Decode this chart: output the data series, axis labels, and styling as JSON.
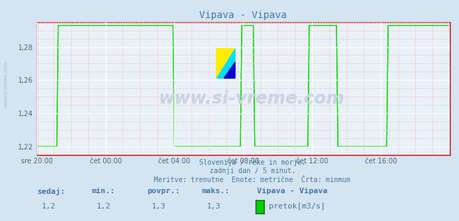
{
  "title": "Vipava - Vipava",
  "bg_color": "#d4e4f0",
  "plot_bg_color": "#e8f0f8",
  "line_color": "#00dd00",
  "grid_color_major": "#ffffff",
  "grid_color_minor": "#ffbbbb",
  "axis_color": "#cc0000",
  "text_color": "#4477aa",
  "ylim": [
    1.215,
    1.295
  ],
  "yticks": [
    1.22,
    1.24,
    1.26,
    1.28
  ],
  "ytick_labels": [
    "1,22",
    "1,24",
    "1,26",
    "1,28"
  ],
  "xtick_labels": [
    "sre 20:00",
    "čet 00:00",
    "čet 04:00",
    "čet 08:00",
    "čet 12:00",
    "čet 16:00"
  ],
  "subtitle_lines": [
    "Slovenija / reke in morje.",
    "zadnji dan / 5 minut.",
    "Meritve: trenutne  Enote: metrične  Črta: minmum"
  ],
  "footer_labels": [
    "sedaj:",
    "min.:",
    "povpr.:",
    "maks.:"
  ],
  "footer_values": [
    "1,2",
    "1,2",
    "1,3",
    "1,3"
  ],
  "footer_series_name": "Vipava - Vipava",
  "footer_series_label": "pretok[m3/s]",
  "footer_series_color": "#00cc00",
  "watermark": "www.si-vreme.com",
  "watermark_color": "#c8d4e4",
  "side_text": "www.si-vreme.com",
  "side_text_color": "#a8bcc8",
  "n_points": 288,
  "low_value": 1.22,
  "high_value": 1.293,
  "xtick_positions": [
    0,
    48,
    96,
    144,
    192,
    240
  ]
}
